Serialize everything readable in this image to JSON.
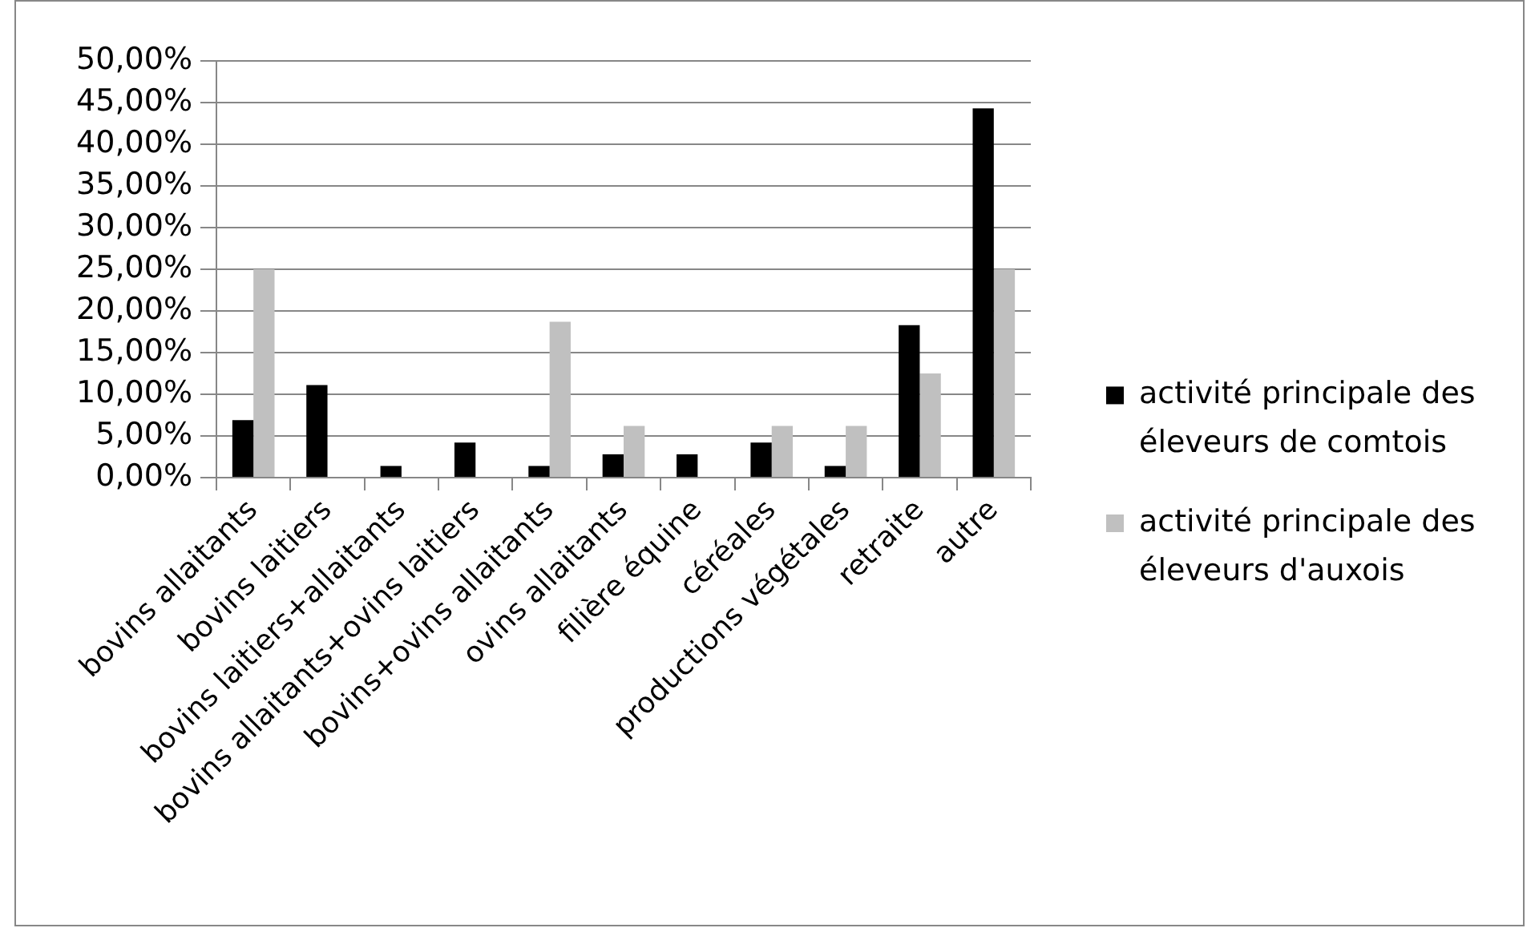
{
  "chart_data": {
    "type": "bar",
    "categories": [
      "bovins allaitants",
      "bovins laitiers",
      "bovins laitiers+allaitants",
      "bovins allaitants+ovins laitiers",
      "bovins+ovins allaitants",
      "ovins allaitants",
      "filière équine",
      "céréales",
      "productions végétales",
      "retraite",
      "autre"
    ],
    "series": [
      {
        "name": "activité principale des éleveurs de comtois",
        "color": "#000000",
        "values": [
          6.9,
          11.1,
          1.4,
          4.2,
          1.4,
          2.8,
          2.8,
          4.2,
          1.4,
          18.3,
          44.3
        ]
      },
      {
        "name": "activité principale des éleveurs d'auxois",
        "color": "#c0c0c0",
        "values": [
          25,
          0,
          0,
          0,
          18.7,
          6.2,
          0,
          6.2,
          6.2,
          12.5,
          25
        ]
      }
    ],
    "ylim": [
      0,
      50
    ],
    "yticks": [
      {
        "value": 0,
        "label": "0,00%"
      },
      {
        "value": 5,
        "label": "5,00%"
      },
      {
        "value": 10,
        "label": "10,00%"
      },
      {
        "value": 15,
        "label": "15,00%"
      },
      {
        "value": 20,
        "label": "20,00%"
      },
      {
        "value": 25,
        "label": "25,00%"
      },
      {
        "value": 30,
        "label": "30,00%"
      },
      {
        "value": 35,
        "label": "35,00%"
      },
      {
        "value": 40,
        "label": "40,00%"
      },
      {
        "value": 45,
        "label": "45,00%"
      },
      {
        "value": 50,
        "label": "50,00%"
      }
    ],
    "grid": "y",
    "legend": "right"
  }
}
